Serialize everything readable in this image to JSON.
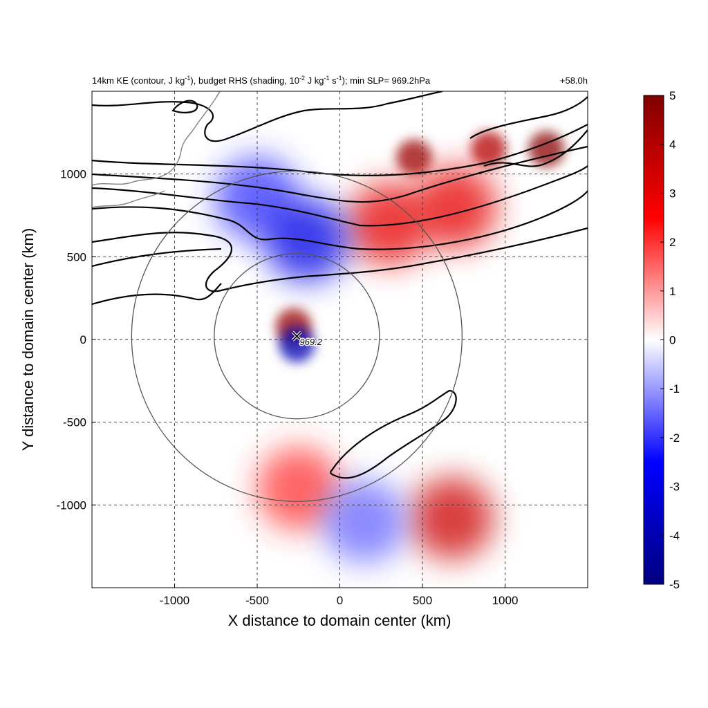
{
  "title": {
    "left_pre": "14km KE (contour, J kg",
    "left_sup1": "-1",
    "left_mid1": "), budget RHS (shading, 10",
    "left_sup2": "-2",
    "left_mid2": " J kg",
    "left_sup3": "-1",
    "left_mid3": " s",
    "left_sup4": "-1",
    "left_post": "); min SLP= 969.2hPa",
    "right": "+58.0h"
  },
  "chart_data": {
    "type": "heatmap",
    "xlabel": "X distance to domain center (km)",
    "ylabel": "Y distance to domain center (km)",
    "xlim": [
      -1500,
      1500
    ],
    "ylim": [
      -1500,
      1500
    ],
    "xticks": [
      -1000,
      -500,
      0,
      500,
      1000
    ],
    "yticks": [
      -1000,
      -500,
      0,
      500,
      1000
    ],
    "xtick_labels": [
      "-1000",
      "-500",
      "0",
      "500",
      "1000"
    ],
    "ytick_labels": [
      "-1000",
      "-500",
      "0",
      "500",
      "1000"
    ],
    "grid": "dashed",
    "colorbar": {
      "range": [
        -5,
        5
      ],
      "ticks": [
        "5",
        "4",
        "3",
        "2",
        "1",
        "0",
        "-1",
        "-2",
        "-3",
        "-4",
        "-5"
      ],
      "colors": [
        "#00007f",
        "#0000ff",
        "#ffffff",
        "#ff0000",
        "#7f0000"
      ]
    },
    "storm_center": {
      "x": -260,
      "y": 20,
      "label": "969.2"
    },
    "range_rings": [
      {
        "center": [
          -260,
          20
        ],
        "radius_km": 500
      },
      {
        "center": [
          -260,
          20
        ],
        "radius_km": 1000
      }
    ],
    "contour_color": "#000000",
    "shading_features": [
      {
        "x": 450,
        "y": 1100,
        "value": 4.5
      },
      {
        "x": 900,
        "y": 1150,
        "value": 4.0
      },
      {
        "x": 1250,
        "y": 1150,
        "value": 4.8
      },
      {
        "x": 300,
        "y": 700,
        "value": 3.0
      },
      {
        "x": 700,
        "y": 800,
        "value": 3.0
      },
      {
        "x": -500,
        "y": 850,
        "value": -2.0
      },
      {
        "x": -200,
        "y": 600,
        "value": -3.0
      },
      {
        "x": -280,
        "y": 80,
        "value": 4.5
      },
      {
        "x": -260,
        "y": -30,
        "value": -4.0
      },
      {
        "x": -250,
        "y": -900,
        "value": 2.0
      },
      {
        "x": 680,
        "y": -1080,
        "value": 3.5
      },
      {
        "x": 150,
        "y": -1100,
        "value": -1.5
      }
    ]
  }
}
